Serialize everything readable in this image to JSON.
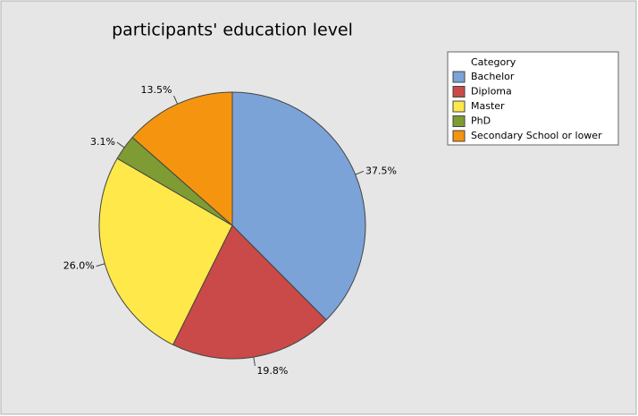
{
  "chart_data": {
    "type": "pie",
    "title": "participants' education level",
    "categories": [
      "Bachelor",
      "Diploma",
      "Master",
      "PhD",
      "Secondary School or lower"
    ],
    "values": [
      37.5,
      19.8,
      26.0,
      3.1,
      13.5
    ],
    "value_labels": [
      "37.5%",
      "19.8%",
      "26.0%",
      "3.1%",
      "13.5%"
    ],
    "colors": [
      "#7ba3d8",
      "#c94a48",
      "#ffe84a",
      "#7e9c33",
      "#f5950f"
    ],
    "legend_title": "Category",
    "legend": "top-right"
  }
}
